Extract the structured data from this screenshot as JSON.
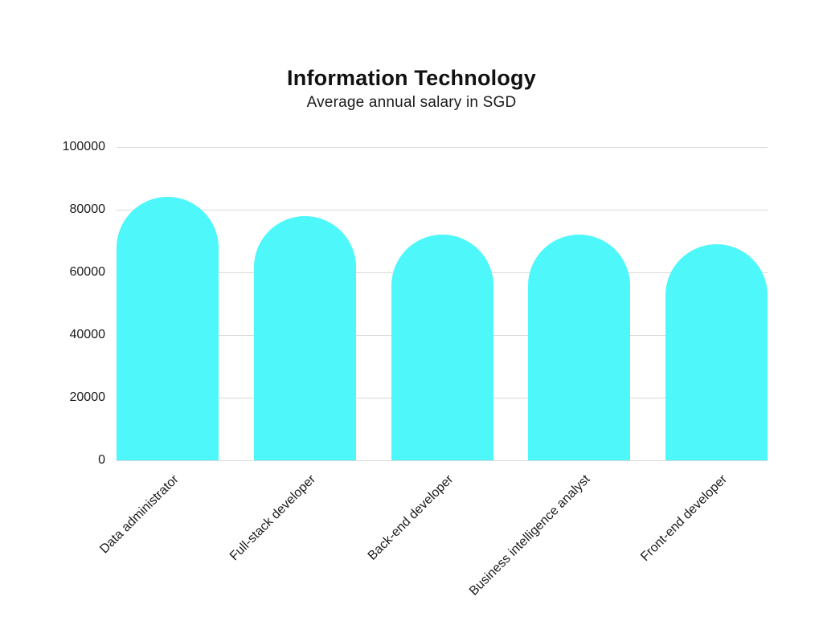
{
  "page": {
    "background_color": "#ffffff",
    "text_color": "#1b1b1b"
  },
  "chart_data": {
    "type": "bar",
    "title": "Information Technology",
    "subtitle": "Average annual salary in SGD",
    "categories": [
      "Data administrator",
      "Full-stack developer",
      "Back-end developer",
      "Business intelligence analyst",
      "Front-end developer"
    ],
    "values": [
      84000,
      78000,
      72000,
      72000,
      69000
    ],
    "xlabel": "",
    "ylabel": "",
    "ylim": [
      0,
      100000
    ],
    "yticks": [
      0,
      20000,
      40000,
      60000,
      80000,
      100000
    ],
    "ytick_labels": [
      "0",
      "20000",
      "40000",
      "60000",
      "80000",
      "100000"
    ],
    "bar_color": "#4DF7FA",
    "grid_color": "#D9D9D9",
    "grid": true,
    "legend": false,
    "x_label_rotation_deg": -45
  }
}
